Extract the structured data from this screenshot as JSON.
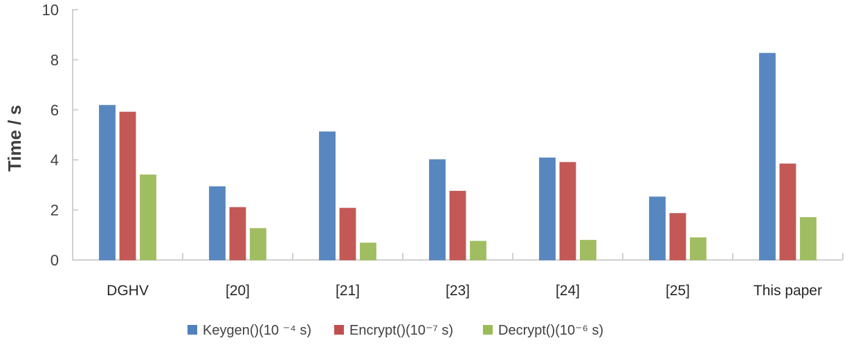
{
  "chart_data": {
    "type": "bar",
    "title": "",
    "xlabel": "",
    "ylabel": "Time / s",
    "ylim": [
      0,
      10
    ],
    "yticks": [
      "0",
      "2",
      "4",
      "6",
      "8",
      "10"
    ],
    "grid": false,
    "legend_position": "bottom",
    "categories": [
      "DGHV",
      "[20]",
      "[21]",
      "[23]",
      "[24]",
      "[25]",
      "This paper"
    ],
    "series": [
      {
        "name": "Keygen()(10 ⁻⁴ s)",
        "color": "#4f81bd",
        "values": [
          6.18,
          2.93,
          5.12,
          4.01,
          4.08,
          2.52,
          8.26
        ]
      },
      {
        "name": "Encrypt()(10⁻⁷ s)",
        "color": "#c0504d",
        "values": [
          5.91,
          2.1,
          2.07,
          2.75,
          3.9,
          1.86,
          3.84
        ]
      },
      {
        "name": "Decrypt()(10⁻⁶ s)",
        "color": "#9bbb59",
        "values": [
          3.4,
          1.26,
          0.68,
          0.75,
          0.79,
          0.89,
          1.7
        ]
      }
    ]
  }
}
